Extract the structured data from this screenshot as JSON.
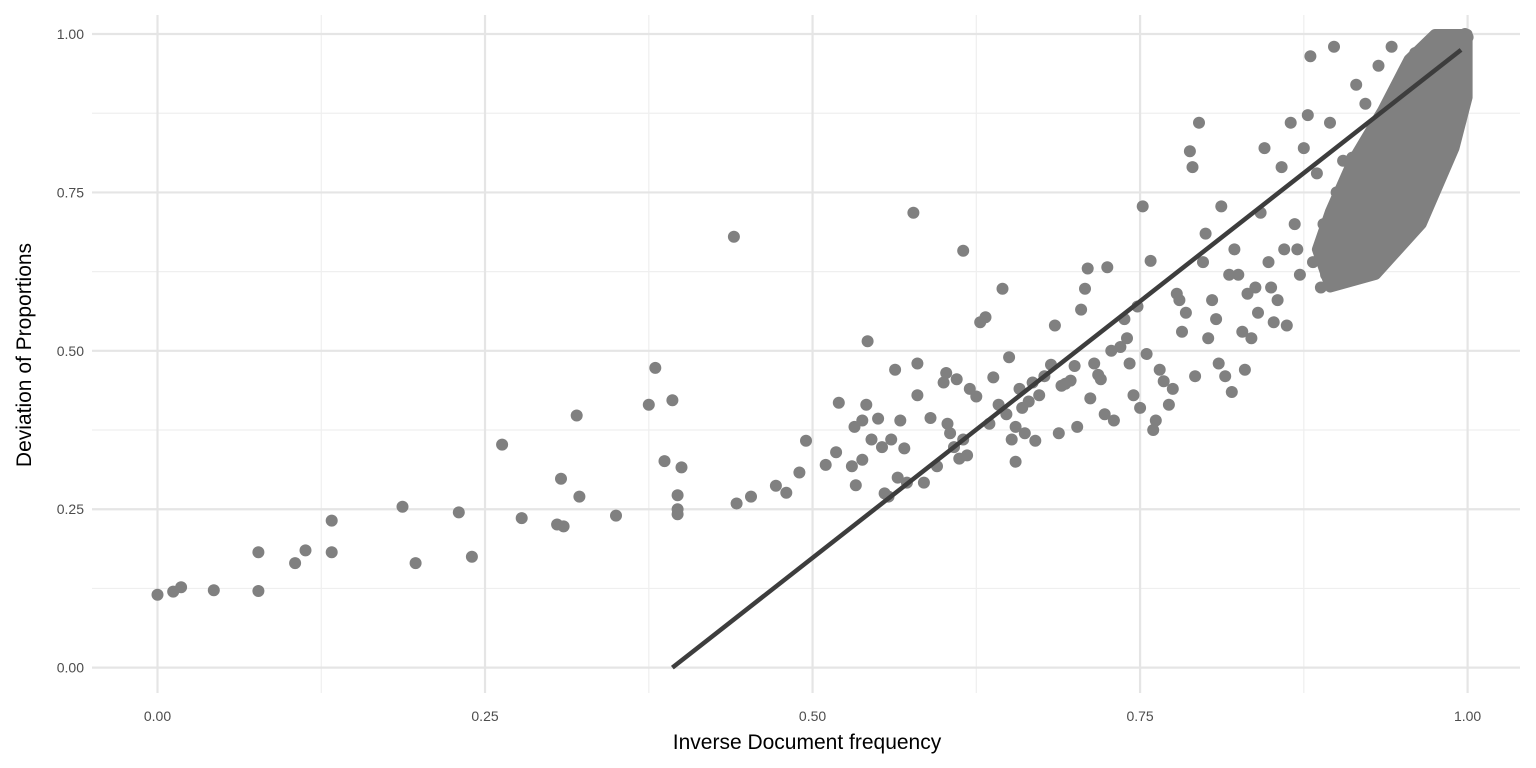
{
  "chart_data": {
    "type": "scatter",
    "title": "",
    "xlabel": "Inverse Document frequency",
    "ylabel": "Deviation of Proportions",
    "xlim": [
      -0.05,
      1.04
    ],
    "ylim": [
      -0.04,
      1.03
    ],
    "x_ticks": [
      0,
      0.25,
      0.5,
      0.75,
      1
    ],
    "x_tick_labels": [
      "0.00",
      "0.25",
      "0.50",
      "0.75",
      "1.00"
    ],
    "y_ticks": [
      0,
      0.25,
      0.5,
      0.75,
      1
    ],
    "y_tick_labels": [
      "0.00",
      "0.25",
      "0.50",
      "0.75",
      "1.00"
    ],
    "grid": true,
    "legend": "none",
    "colors": {
      "points": "#808080",
      "line": "#3d3d3d",
      "grid_major": "#e5e5e5",
      "grid_minor": "#efefef"
    },
    "series": [
      {
        "values": [
          [
            0.0,
            0.115
          ],
          [
            0.012,
            0.12
          ],
          [
            0.018,
            0.127
          ],
          [
            0.043,
            0.122
          ],
          [
            0.077,
            0.121
          ],
          [
            0.077,
            0.182
          ],
          [
            0.105,
            0.165
          ],
          [
            0.113,
            0.185
          ],
          [
            0.133,
            0.182
          ],
          [
            0.133,
            0.232
          ],
          [
            0.187,
            0.254
          ],
          [
            0.197,
            0.165
          ],
          [
            0.23,
            0.245
          ],
          [
            0.24,
            0.175
          ],
          [
            0.263,
            0.352
          ],
          [
            0.278,
            0.236
          ],
          [
            0.305,
            0.226
          ],
          [
            0.308,
            0.298
          ],
          [
            0.31,
            0.223
          ],
          [
            0.32,
            0.398
          ],
          [
            0.322,
            0.27
          ],
          [
            0.35,
            0.24
          ],
          [
            0.375,
            0.415
          ],
          [
            0.38,
            0.473
          ],
          [
            0.387,
            0.326
          ],
          [
            0.393,
            0.422
          ],
          [
            0.397,
            0.272
          ],
          [
            0.397,
            0.25
          ],
          [
            0.397,
            0.242
          ],
          [
            0.4,
            0.316
          ],
          [
            0.44,
            0.68
          ],
          [
            0.442,
            0.259
          ],
          [
            0.453,
            0.27
          ],
          [
            0.472,
            0.287
          ],
          [
            0.48,
            0.276
          ],
          [
            0.49,
            0.308
          ],
          [
            0.495,
            0.358
          ],
          [
            0.51,
            0.32
          ],
          [
            0.518,
            0.34
          ],
          [
            0.52,
            0.418
          ],
          [
            0.53,
            0.318
          ],
          [
            0.532,
            0.38
          ],
          [
            0.533,
            0.288
          ],
          [
            0.538,
            0.328
          ],
          [
            0.538,
            0.39
          ],
          [
            0.541,
            0.415
          ],
          [
            0.542,
            0.515
          ],
          [
            0.545,
            0.36
          ],
          [
            0.55,
            0.393
          ],
          [
            0.553,
            0.348
          ],
          [
            0.555,
            0.275
          ],
          [
            0.558,
            0.27
          ],
          [
            0.56,
            0.36
          ],
          [
            0.563,
            0.47
          ],
          [
            0.565,
            0.3
          ],
          [
            0.567,
            0.39
          ],
          [
            0.57,
            0.346
          ],
          [
            0.572,
            0.292
          ],
          [
            0.577,
            0.718
          ],
          [
            0.58,
            0.43
          ],
          [
            0.58,
            0.48
          ],
          [
            0.585,
            0.292
          ],
          [
            0.59,
            0.394
          ],
          [
            0.595,
            0.318
          ],
          [
            0.6,
            0.45
          ],
          [
            0.602,
            0.465
          ],
          [
            0.603,
            0.385
          ],
          [
            0.605,
            0.37
          ],
          [
            0.608,
            0.348
          ],
          [
            0.61,
            0.455
          ],
          [
            0.612,
            0.33
          ],
          [
            0.615,
            0.36
          ],
          [
            0.615,
            0.658
          ],
          [
            0.618,
            0.335
          ],
          [
            0.62,
            0.44
          ],
          [
            0.625,
            0.428
          ],
          [
            0.628,
            0.545
          ],
          [
            0.632,
            0.553
          ],
          [
            0.635,
            0.385
          ],
          [
            0.638,
            0.458
          ],
          [
            0.642,
            0.415
          ],
          [
            0.645,
            0.598
          ],
          [
            0.648,
            0.4
          ],
          [
            0.65,
            0.49
          ],
          [
            0.652,
            0.36
          ],
          [
            0.655,
            0.38
          ],
          [
            0.655,
            0.325
          ],
          [
            0.658,
            0.44
          ],
          [
            0.66,
            0.41
          ],
          [
            0.662,
            0.37
          ],
          [
            0.665,
            0.42
          ],
          [
            0.668,
            0.45
          ],
          [
            0.67,
            0.358
          ],
          [
            0.673,
            0.43
          ],
          [
            0.677,
            0.46
          ],
          [
            0.682,
            0.478
          ],
          [
            0.685,
            0.54
          ],
          [
            0.688,
            0.37
          ],
          [
            0.69,
            0.445
          ],
          [
            0.693,
            0.448
          ],
          [
            0.697,
            0.453
          ],
          [
            0.7,
            0.476
          ],
          [
            0.702,
            0.38
          ],
          [
            0.705,
            0.565
          ],
          [
            0.708,
            0.598
          ],
          [
            0.71,
            0.63
          ],
          [
            0.712,
            0.425
          ],
          [
            0.715,
            0.48
          ],
          [
            0.718,
            0.462
          ],
          [
            0.72,
            0.455
          ],
          [
            0.723,
            0.4
          ],
          [
            0.725,
            0.632
          ],
          [
            0.728,
            0.5
          ],
          [
            0.73,
            0.39
          ],
          [
            0.735,
            0.506
          ],
          [
            0.738,
            0.55
          ],
          [
            0.74,
            0.52
          ],
          [
            0.742,
            0.48
          ],
          [
            0.745,
            0.43
          ],
          [
            0.748,
            0.57
          ],
          [
            0.75,
            0.41
          ],
          [
            0.752,
            0.728
          ],
          [
            0.755,
            0.495
          ],
          [
            0.758,
            0.642
          ],
          [
            0.76,
            0.375
          ],
          [
            0.762,
            0.39
          ],
          [
            0.765,
            0.47
          ],
          [
            0.768,
            0.452
          ],
          [
            0.772,
            0.415
          ],
          [
            0.775,
            0.44
          ],
          [
            0.778,
            0.59
          ],
          [
            0.78,
            0.58
          ],
          [
            0.782,
            0.53
          ],
          [
            0.785,
            0.56
          ],
          [
            0.788,
            0.815
          ],
          [
            0.79,
            0.79
          ],
          [
            0.792,
            0.46
          ],
          [
            0.795,
            0.86
          ],
          [
            0.798,
            0.64
          ],
          [
            0.8,
            0.685
          ],
          [
            0.802,
            0.52
          ],
          [
            0.805,
            0.58
          ],
          [
            0.808,
            0.55
          ],
          [
            0.81,
            0.48
          ],
          [
            0.812,
            0.728
          ],
          [
            0.815,
            0.46
          ],
          [
            0.818,
            0.62
          ],
          [
            0.82,
            0.435
          ],
          [
            0.822,
            0.66
          ],
          [
            0.825,
            0.62
          ],
          [
            0.828,
            0.53
          ],
          [
            0.83,
            0.47
          ],
          [
            0.832,
            0.59
          ],
          [
            0.835,
            0.52
          ],
          [
            0.838,
            0.6
          ],
          [
            0.84,
            0.56
          ],
          [
            0.842,
            0.718
          ],
          [
            0.845,
            0.82
          ],
          [
            0.848,
            0.64
          ],
          [
            0.85,
            0.6
          ],
          [
            0.852,
            0.545
          ],
          [
            0.855,
            0.58
          ],
          [
            0.858,
            0.79
          ],
          [
            0.86,
            0.66
          ],
          [
            0.862,
            0.54
          ],
          [
            0.865,
            0.86
          ],
          [
            0.868,
            0.7
          ],
          [
            0.87,
            0.66
          ],
          [
            0.872,
            0.62
          ],
          [
            0.875,
            0.82
          ],
          [
            0.878,
            0.872
          ],
          [
            0.88,
            0.965
          ],
          [
            0.882,
            0.64
          ],
          [
            0.885,
            0.78
          ],
          [
            0.888,
            0.6
          ],
          [
            0.89,
            0.7
          ],
          [
            0.892,
            0.62
          ],
          [
            0.895,
            0.86
          ],
          [
            0.898,
            0.98
          ],
          [
            0.9,
            0.75
          ],
          [
            0.902,
            0.66
          ],
          [
            0.905,
            0.8
          ],
          [
            0.908,
            0.72
          ],
          [
            0.91,
            0.63
          ],
          [
            0.912,
            0.805
          ],
          [
            0.915,
            0.92
          ],
          [
            0.918,
            0.76
          ],
          [
            0.92,
            0.68
          ],
          [
            0.922,
            0.89
          ],
          [
            0.925,
            0.84
          ],
          [
            0.928,
            0.78
          ],
          [
            0.93,
            0.72
          ],
          [
            0.932,
            0.95
          ],
          [
            0.935,
            0.86
          ],
          [
            0.938,
            0.8
          ],
          [
            0.94,
            0.74
          ],
          [
            0.942,
            0.98
          ],
          [
            0.945,
            0.9
          ],
          [
            0.948,
            0.84
          ],
          [
            0.95,
            0.78
          ],
          [
            0.952,
            0.94
          ],
          [
            0.955,
            0.88
          ],
          [
            0.958,
            0.82
          ],
          [
            0.96,
            0.97
          ],
          [
            0.962,
            0.9
          ],
          [
            0.965,
            0.85
          ],
          [
            0.968,
            0.98
          ],
          [
            0.97,
            0.93
          ],
          [
            0.972,
            0.87
          ],
          [
            0.975,
            0.99
          ],
          [
            0.978,
            0.95
          ],
          [
            0.98,
            0.9
          ],
          [
            0.982,
            0.985
          ],
          [
            0.985,
            0.96
          ],
          [
            0.988,
            0.93
          ],
          [
            0.99,
            0.99
          ],
          [
            0.992,
            0.97
          ],
          [
            0.995,
            0.995
          ],
          [
            0.997,
            0.98
          ],
          [
            0.998,
            1.0
          ],
          [
            1.0,
            0.995
          ]
        ]
      }
    ],
    "trend_line": {
      "x": [
        0.393,
        0.995
      ],
      "y": [
        0.0,
        0.975
      ]
    }
  }
}
